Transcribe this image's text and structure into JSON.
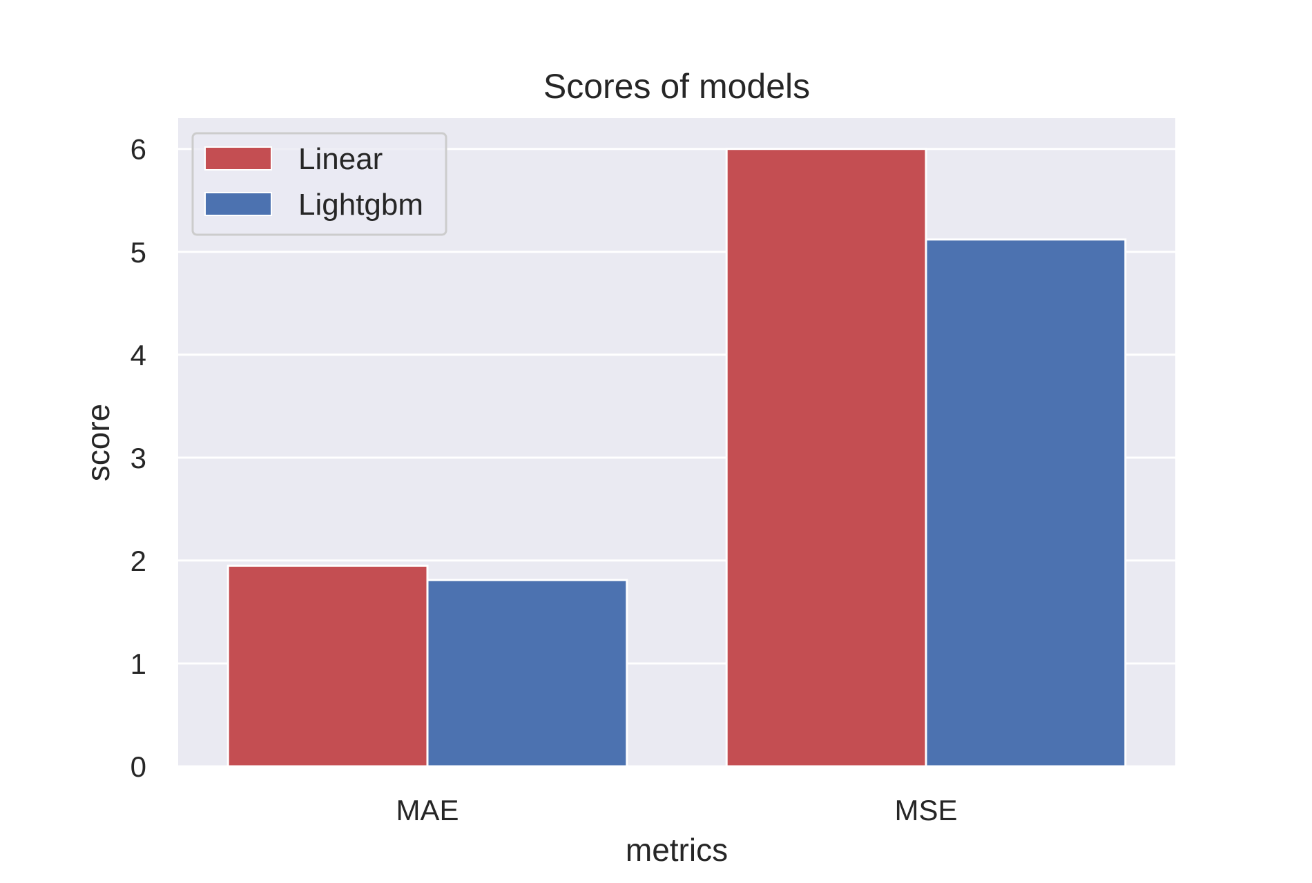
{
  "chart_data": {
    "type": "bar",
    "title": "Scores of models",
    "xlabel": "metrics",
    "ylabel": "score",
    "categories": [
      "MAE",
      "MSE"
    ],
    "series": [
      {
        "name": "Linear",
        "color": "#c44e52",
        "values": [
          1.95,
          6.0
        ]
      },
      {
        "name": "Lightgbm",
        "color": "#4c72b0",
        "values": [
          1.81,
          5.12
        ]
      }
    ],
    "ylim": [
      0,
      6.3
    ],
    "yticks": [
      0,
      1,
      2,
      3,
      4,
      5,
      6
    ],
    "grid": true,
    "legend_position": "top-left",
    "background": "#eaeaf2"
  }
}
